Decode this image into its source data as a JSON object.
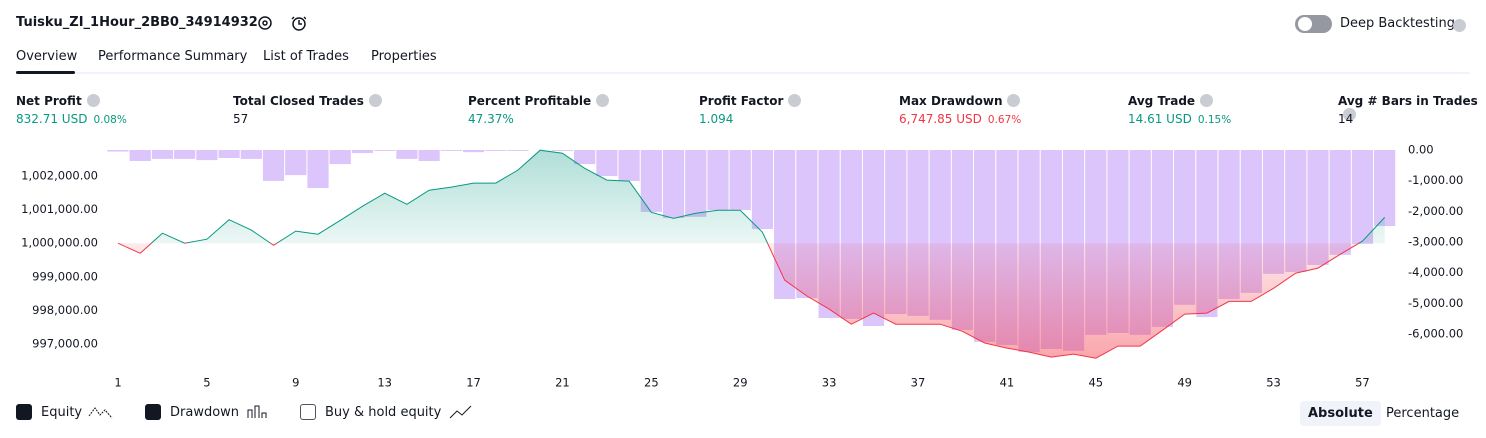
{
  "header": {
    "title": "Tuisku_ZI_1Hour_2BB0_34914932",
    "deep_backtesting": "Deep Backtesting",
    "deep_backtesting_on": false
  },
  "tabs": {
    "items": [
      "Overview",
      "Performance Summary",
      "List of Trades",
      "Properties"
    ],
    "active": 0
  },
  "metrics": [
    {
      "label": "Net Profit",
      "value": "832.71 USD",
      "percent": "0.08%",
      "color": "#089981"
    },
    {
      "label": "Total Closed Trades",
      "value": "57",
      "color": "#131722"
    },
    {
      "label": "Percent Profitable",
      "value": "47.37%",
      "color": "#089981"
    },
    {
      "label": "Profit Factor",
      "value": "1.094",
      "color": "#089981"
    },
    {
      "label": "Max Drawdown",
      "value": "6,747.85 USD",
      "percent": "0.67%",
      "color": "#f23645"
    },
    {
      "label": "Avg Trade",
      "value": "14.61 USD",
      "percent": "0.15%",
      "color": "#089981"
    },
    {
      "label": "Avg # Bars in Trades",
      "value": "14",
      "color": "#131722"
    }
  ],
  "chart_data": {
    "type": "equity-drawdown",
    "x": [
      1,
      2,
      3,
      4,
      5,
      6,
      7,
      8,
      9,
      10,
      11,
      12,
      13,
      14,
      15,
      16,
      17,
      18,
      19,
      20,
      21,
      22,
      23,
      24,
      25,
      26,
      27,
      28,
      29,
      30,
      31,
      32,
      33,
      34,
      35,
      36,
      37,
      38,
      39,
      40,
      41,
      42,
      43,
      44,
      45,
      46,
      47,
      48,
      49,
      50,
      51,
      52,
      53,
      54,
      55,
      56,
      57,
      58
    ],
    "xlim": [
      0.55,
      58.6
    ],
    "xticks": [
      1,
      5,
      9,
      13,
      17,
      21,
      25,
      29,
      33,
      37,
      41,
      45,
      49,
      53,
      57
    ],
    "ylim": [
      996525,
      1002775
    ],
    "yticks": [
      {
        "value": 997000,
        "label": "997,000.00"
      },
      {
        "value": 998000,
        "label": "998,000.00"
      },
      {
        "value": 999000,
        "label": "999,000.00"
      },
      {
        "value": 1000000,
        "label": "1,000,000.00"
      },
      {
        "value": 1001000,
        "label": "1,001,000.00"
      },
      {
        "value": 1002000,
        "label": "1,002,000.00"
      }
    ],
    "y2lim": [
      -6850,
      0
    ],
    "y2ticks": [
      {
        "value": 0,
        "label": "0.00"
      },
      {
        "value": -1000,
        "label": "-1,000.00"
      },
      {
        "value": -2000,
        "label": "-2,000.00"
      },
      {
        "value": -3000,
        "label": "-3,000.00"
      },
      {
        "value": -4000,
        "label": "-4,000.00"
      },
      {
        "value": -5000,
        "label": "-5,000.00"
      },
      {
        "value": -6000,
        "label": "-6,000.00"
      }
    ],
    "baseline": 1000000,
    "series": [
      {
        "name": "Equity",
        "color": "#089981",
        "color_below": "#f23645",
        "values": [
          1000000,
          999700,
          1000300,
          1000000,
          1000120,
          1000700,
          1000390,
          999940,
          1000360,
          1000270,
          1000680,
          1001100,
          1001490,
          1001160,
          1001580,
          1001670,
          1001790,
          1001790,
          1002180,
          1002770,
          1002680,
          1002230,
          1001880,
          1001850,
          1000920,
          1000740,
          1000890,
          1000980,
          1000980,
          1000330,
          998900,
          998430,
          998040,
          997590,
          997920,
          997590,
          997590,
          997590,
          997380,
          997030,
          996880,
          996760,
          996610,
          996700,
          996580,
          996940,
          996940,
          997410,
          997890,
          997920,
          998270,
          998270,
          998660,
          999110,
          999260,
          999670,
          1000060,
          1000770
        ]
      },
      {
        "name": "Drawdown",
        "color": "#dcc5fb",
        "axis": "y2",
        "values": [
          -50,
          -360,
          -290,
          -290,
          -330,
          -260,
          -290,
          -1010,
          -820,
          -1240,
          -460,
          -100,
          -30,
          -290,
          -360,
          -30,
          -70,
          -30,
          -30,
          0,
          -30,
          -460,
          -850,
          -1010,
          -2020,
          -2220,
          -2180,
          -1960,
          -1960,
          -2580,
          -4860,
          -4830,
          -5480,
          -5510,
          -5740,
          -5350,
          -5410,
          -5540,
          -5870,
          -6260,
          -6360,
          -6590,
          -6490,
          -6550,
          -6030,
          -5970,
          -6030,
          -5770,
          -5050,
          -5450,
          -4860,
          -4660,
          -4040,
          -3980,
          -3750,
          -3420,
          -3060,
          -2480
        ]
      }
    ],
    "legend_extra": {
      "name": "Buy & hold equity",
      "checked": false
    }
  },
  "scale_options": {
    "items": [
      "Absolute",
      "Percentage"
    ],
    "active": 0
  }
}
